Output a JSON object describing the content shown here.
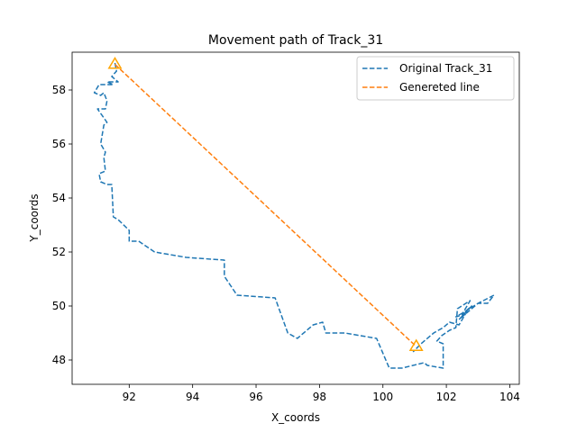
{
  "chart_data": {
    "type": "line",
    "title": "Movement path of Track_31",
    "xlabel": "X_coords",
    "ylabel": "Y_coords",
    "xlim": [
      90.2,
      104.3
    ],
    "ylim": [
      47.1,
      59.4
    ],
    "xticks": [
      92,
      94,
      96,
      98,
      100,
      102,
      104
    ],
    "yticks": [
      48,
      50,
      52,
      54,
      56,
      58
    ],
    "grid": false,
    "legend_position": "top-right",
    "series": [
      {
        "name": "Original Track_31",
        "color": "#1f77b4",
        "style": "dashed",
        "x": [
          91.55,
          91.6,
          91.45,
          91.65,
          91.3,
          91.5,
          91.05,
          90.9,
          91.1,
          91.2,
          91.3,
          91.25,
          91.0,
          91.3,
          91.2,
          91.1,
          91.25,
          91.2,
          91.25,
          91.05,
          91.1,
          91.3,
          91.45,
          91.5,
          91.65,
          92.0,
          92.0,
          92.3,
          92.8,
          93.8,
          95.0,
          95.0,
          95.4,
          96.6,
          97.0,
          97.3,
          97.8,
          98.1,
          98.2,
          98.8,
          99.8,
          100.2,
          100.6,
          101.3,
          101.4,
          101.9,
          101.9,
          101.7,
          101.85,
          102.1,
          102.3,
          102.35,
          102.75,
          102.5,
          102.8,
          102.4,
          103.0,
          103.3,
          103.5,
          103.0,
          102.6,
          102.3,
          102.6,
          102.4,
          102.1,
          101.9,
          101.6,
          101.2,
          100.95
        ],
        "y": [
          59.0,
          58.7,
          58.5,
          58.3,
          58.3,
          58.2,
          58.2,
          57.9,
          57.8,
          57.9,
          57.6,
          57.3,
          57.3,
          56.8,
          56.7,
          56.0,
          55.7,
          55.5,
          55.0,
          54.9,
          54.6,
          54.5,
          54.5,
          53.3,
          53.2,
          52.8,
          52.4,
          52.4,
          52.0,
          51.8,
          51.7,
          51.1,
          50.4,
          50.3,
          49.0,
          48.8,
          49.3,
          49.4,
          49.0,
          49.0,
          48.8,
          47.7,
          47.7,
          47.9,
          47.8,
          47.7,
          48.6,
          48.7,
          48.9,
          49.1,
          49.2,
          49.9,
          50.2,
          49.7,
          50.0,
          49.5,
          50.1,
          50.1,
          50.4,
          50.1,
          49.8,
          49.6,
          49.7,
          49.3,
          49.4,
          49.2,
          49.0,
          48.6,
          48.3
        ]
      },
      {
        "name": "Genereted line",
        "color": "#ff7f0e",
        "style": "dashed",
        "x": [
          91.55,
          101.05
        ],
        "y": [
          58.95,
          48.5
        ]
      }
    ],
    "markers": [
      {
        "shape": "triangle",
        "color": "#ffa500",
        "x": 91.55,
        "y": 58.95
      },
      {
        "shape": "triangle",
        "color": "#ffa500",
        "x": 101.05,
        "y": 48.5
      }
    ]
  }
}
